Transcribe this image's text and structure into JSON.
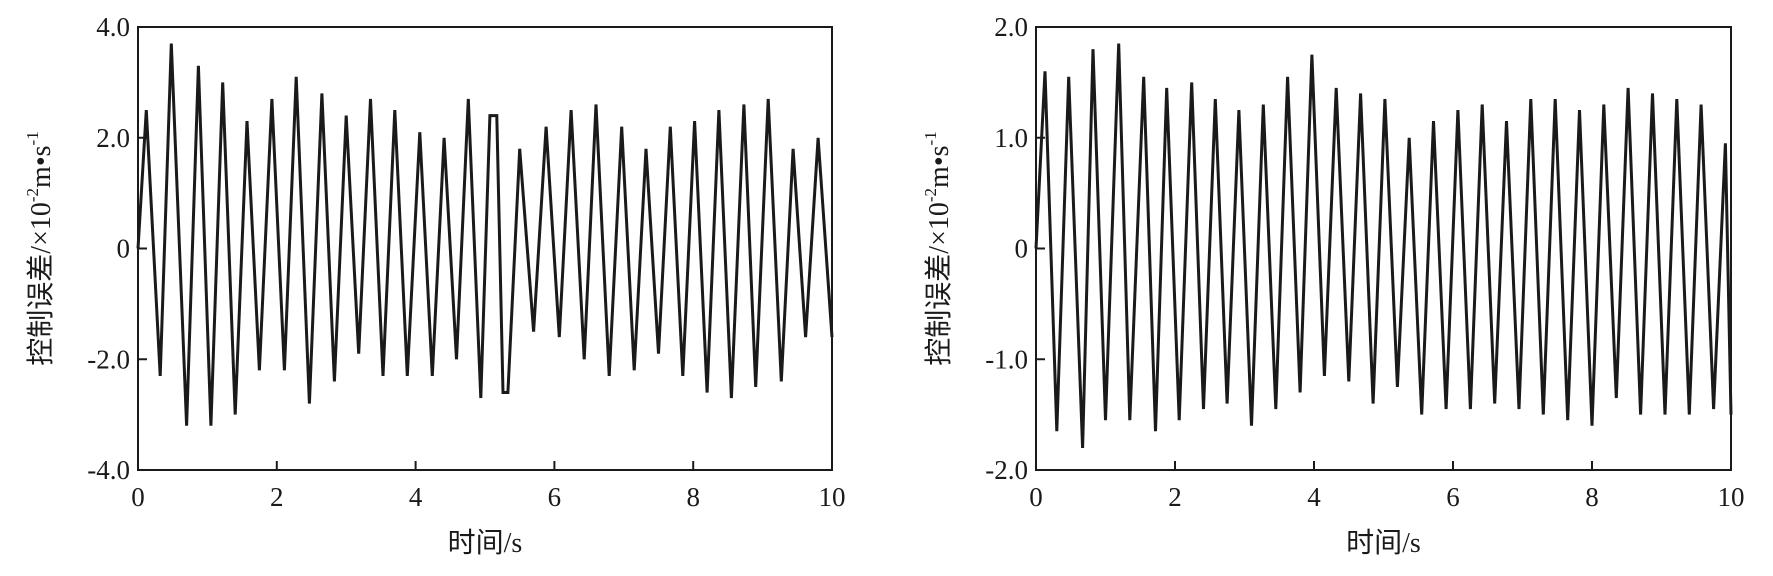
{
  "chart_data": [
    {
      "type": "line",
      "xlabel": "时间/s",
      "ylabel_main": "控制误差/×10",
      "ylabel_exp": "-2",
      "ylabel_mid": "m•s",
      "ylabel_exp2": "-1",
      "xlim": [
        0,
        10
      ],
      "ylim": [
        -4.0,
        4.0
      ],
      "xticks": [
        0,
        2,
        4,
        6,
        8,
        10
      ],
      "xtick_labels": [
        "0",
        "2",
        "4",
        "6",
        "8",
        "10"
      ],
      "yticks": [
        4.0,
        2.0,
        0,
        -2.0,
        -4.0
      ],
      "ytick_labels": [
        "4.0",
        "2.0",
        "0",
        "-2.0",
        "-4.0"
      ],
      "grid": false,
      "series": [
        {
          "x": [
            0,
            0.12,
            0.32,
            0.48,
            0.7,
            0.87,
            1.05,
            1.22,
            1.4,
            1.57,
            1.75,
            1.93,
            2.11,
            2.28,
            2.47,
            2.65,
            2.83,
            3.0,
            3.18,
            3.35,
            3.53,
            3.7,
            3.88,
            4.06,
            4.24,
            4.41,
            4.59,
            4.76,
            4.94,
            5.07,
            5.17,
            5.26,
            5.33,
            5.5,
            5.7,
            5.88,
            6.07,
            6.24,
            6.43,
            6.6,
            6.79,
            6.97,
            7.15,
            7.32,
            7.5,
            7.67,
            7.85,
            8.02,
            8.2,
            8.37,
            8.55,
            8.73,
            8.9,
            9.08,
            9.27,
            9.44,
            9.62,
            9.8,
            10.0
          ],
          "y": [
            0.0,
            2.5,
            -2.3,
            3.7,
            -3.2,
            3.3,
            -3.2,
            3.0,
            -3.0,
            2.3,
            -2.2,
            2.7,
            -2.2,
            3.1,
            -2.8,
            2.8,
            -2.4,
            2.4,
            -1.9,
            2.7,
            -2.3,
            2.5,
            -2.3,
            2.1,
            -2.3,
            2.0,
            -2.0,
            2.7,
            -2.7,
            2.4,
            2.4,
            -2.6,
            -2.6,
            1.8,
            -1.5,
            2.2,
            -1.6,
            2.5,
            -2.0,
            2.6,
            -2.3,
            2.2,
            -2.2,
            1.8,
            -1.9,
            2.2,
            -2.3,
            2.3,
            -2.6,
            2.5,
            -2.7,
            2.6,
            -2.5,
            2.7,
            -2.4,
            1.8,
            -1.6,
            2.0,
            -1.6
          ]
        }
      ]
    },
    {
      "type": "line",
      "xlabel": "时间/s",
      "ylabel_main": "控制误差/×10",
      "ylabel_exp": "-2",
      "ylabel_mid": "m•s",
      "ylabel_exp2": "-1",
      "xlim": [
        0,
        10
      ],
      "ylim": [
        -2.0,
        2.0
      ],
      "xticks": [
        0,
        2,
        4,
        6,
        8,
        10
      ],
      "xtick_labels": [
        "0",
        "2",
        "4",
        "6",
        "8",
        "10"
      ],
      "yticks": [
        2.0,
        1.0,
        0,
        -1.0,
        -2.0
      ],
      "ytick_labels": [
        "2.0",
        "1.0",
        "0",
        "-1.0",
        "-2.0"
      ],
      "grid": false,
      "series": [
        {
          "x": [
            0,
            0.13,
            0.3,
            0.47,
            0.67,
            0.82,
            1.0,
            1.19,
            1.35,
            1.55,
            1.72,
            1.88,
            2.06,
            2.24,
            2.41,
            2.58,
            2.75,
            2.92,
            3.1,
            3.27,
            3.45,
            3.62,
            3.8,
            3.97,
            4.15,
            4.32,
            4.5,
            4.67,
            4.85,
            5.02,
            5.2,
            5.37,
            5.55,
            5.72,
            5.9,
            6.07,
            6.25,
            6.42,
            6.6,
            6.77,
            6.95,
            7.12,
            7.3,
            7.47,
            7.65,
            7.82,
            8.0,
            8.17,
            8.35,
            8.52,
            8.7,
            8.87,
            9.05,
            9.22,
            9.4,
            9.57,
            9.75,
            9.92,
            10.0
          ],
          "y": [
            0.0,
            1.6,
            -1.65,
            1.55,
            -1.8,
            1.8,
            -1.55,
            1.85,
            -1.55,
            1.55,
            -1.65,
            1.45,
            -1.55,
            1.5,
            -1.45,
            1.35,
            -1.4,
            1.25,
            -1.6,
            1.3,
            -1.45,
            1.55,
            -1.3,
            1.75,
            -1.15,
            1.45,
            -1.2,
            1.4,
            -1.4,
            1.35,
            -1.25,
            1.0,
            -1.5,
            1.15,
            -1.45,
            1.25,
            -1.45,
            1.3,
            -1.4,
            1.15,
            -1.45,
            1.35,
            -1.5,
            1.35,
            -1.55,
            1.25,
            -1.6,
            1.3,
            -1.35,
            1.45,
            -1.5,
            1.4,
            -1.5,
            1.35,
            -1.5,
            1.3,
            -1.45,
            0.95,
            -1.5
          ]
        }
      ]
    }
  ]
}
